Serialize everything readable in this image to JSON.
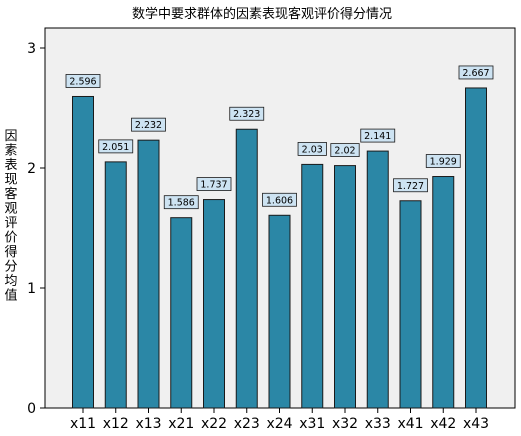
{
  "chart_data": {
    "type": "bar",
    "title": "数学中要求群体的因素表现客观评价得分情况",
    "ylabel": "因素表现客观评价得分均值",
    "xlabel": "",
    "categories": [
      "x11",
      "x12",
      "x13",
      "x21",
      "x22",
      "x23",
      "x24",
      "x31",
      "x32",
      "x33",
      "x41",
      "x42",
      "x43"
    ],
    "values": [
      2.596,
      2.051,
      2.232,
      1.586,
      1.737,
      2.323,
      1.606,
      2.03,
      2.02,
      2.141,
      1.727,
      1.929,
      2.667
    ],
    "value_labels": [
      "2.596",
      "2.051",
      "2.232",
      "1.586",
      "1.737",
      "2.323",
      "1.606",
      "2.03",
      "2.02",
      "2.141",
      "1.727",
      "1.929",
      "2.667"
    ],
    "ylim": [
      0,
      3
    ],
    "yticks": [
      "0",
      "1",
      "2",
      "3"
    ],
    "grid": false,
    "colors": {
      "bar_fill": "#2b87a6",
      "bar_stroke": "#1a1a1a",
      "label_fill": "#cde3f2",
      "plot_background": "#f0f0f0",
      "axis": "#000000"
    }
  }
}
